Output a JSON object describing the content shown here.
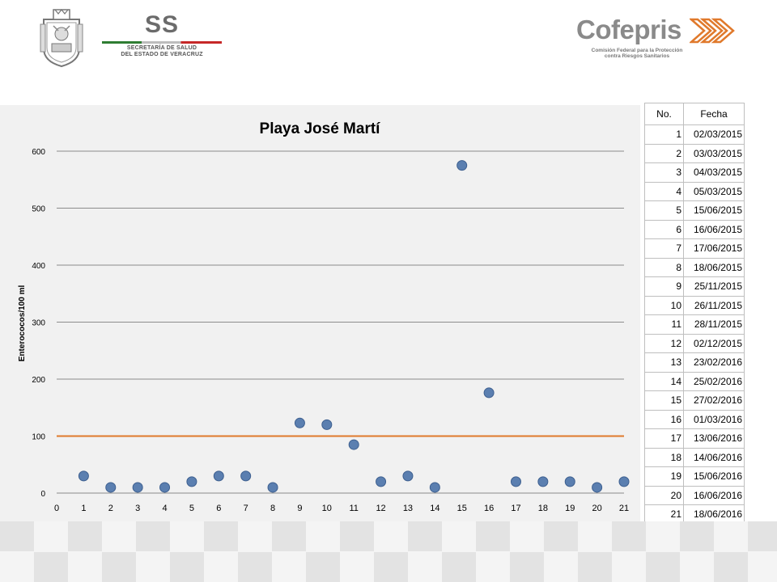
{
  "header": {
    "ss_logo": {
      "title": "SS",
      "line1": "SECRETARÍA DE SALUD",
      "line2": "DEL ESTADO DE VERACRUZ"
    },
    "cofepris_logo": {
      "name": "Cofepris",
      "line1": "Comisión Federal para la Protección",
      "line2": "contra Riesgos Sanitarios"
    }
  },
  "colors": {
    "points": "#5b7fb0",
    "point_stroke": "#3d5f8f",
    "limit_line": "#e0792b",
    "grid": "#8c8c8c",
    "chart_bg": "#f1f1f1"
  },
  "chart_data": {
    "type": "scatter",
    "title": "Playa José Martí",
    "xlabel": "",
    "ylabel": "Enterococos/100 ml",
    "xlim": [
      0,
      21
    ],
    "ylim": [
      0,
      600
    ],
    "x_ticks": [
      "0",
      "1",
      "2",
      "3",
      "4",
      "5",
      "6",
      "7",
      "8",
      "9",
      "10",
      "11",
      "12",
      "13",
      "14",
      "15",
      "16",
      "17",
      "18",
      "19",
      "20",
      "21"
    ],
    "y_ticks": [
      "0",
      "100",
      "200",
      "300",
      "400",
      "500",
      "600"
    ],
    "grid": true,
    "x": [
      1,
      2,
      3,
      4,
      5,
      6,
      7,
      8,
      9,
      10,
      11,
      12,
      13,
      14,
      15,
      16,
      17,
      18,
      19,
      20,
      21
    ],
    "y": [
      30,
      10,
      10,
      10,
      20,
      30,
      30,
      10,
      123,
      120,
      85,
      20,
      30,
      10,
      575,
      176,
      20,
      20,
      20,
      10,
      20
    ],
    "reference_line": {
      "y": 100,
      "color": "#e0792b"
    }
  },
  "table": {
    "headers": [
      "No.",
      "Fecha"
    ],
    "rows": [
      [
        "1",
        "02/03/2015"
      ],
      [
        "2",
        "03/03/2015"
      ],
      [
        "3",
        "04/03/2015"
      ],
      [
        "4",
        "05/03/2015"
      ],
      [
        "5",
        "15/06/2015"
      ],
      [
        "6",
        "16/06/2015"
      ],
      [
        "7",
        "17/06/2015"
      ],
      [
        "8",
        "18/06/2015"
      ],
      [
        "9",
        "25/11/2015"
      ],
      [
        "10",
        "26/11/2015"
      ],
      [
        "11",
        "28/11/2015"
      ],
      [
        "12",
        "02/12/2015"
      ],
      [
        "13",
        "23/02/2016"
      ],
      [
        "14",
        "25/02/2016"
      ],
      [
        "15",
        "27/02/2016"
      ],
      [
        "16",
        "01/03/2016"
      ],
      [
        "17",
        "13/06/2016"
      ],
      [
        "18",
        "14/06/2016"
      ],
      [
        "19",
        "15/06/2016"
      ],
      [
        "20",
        "16/06/2016"
      ],
      [
        "21",
        "18/06/2016"
      ]
    ]
  }
}
